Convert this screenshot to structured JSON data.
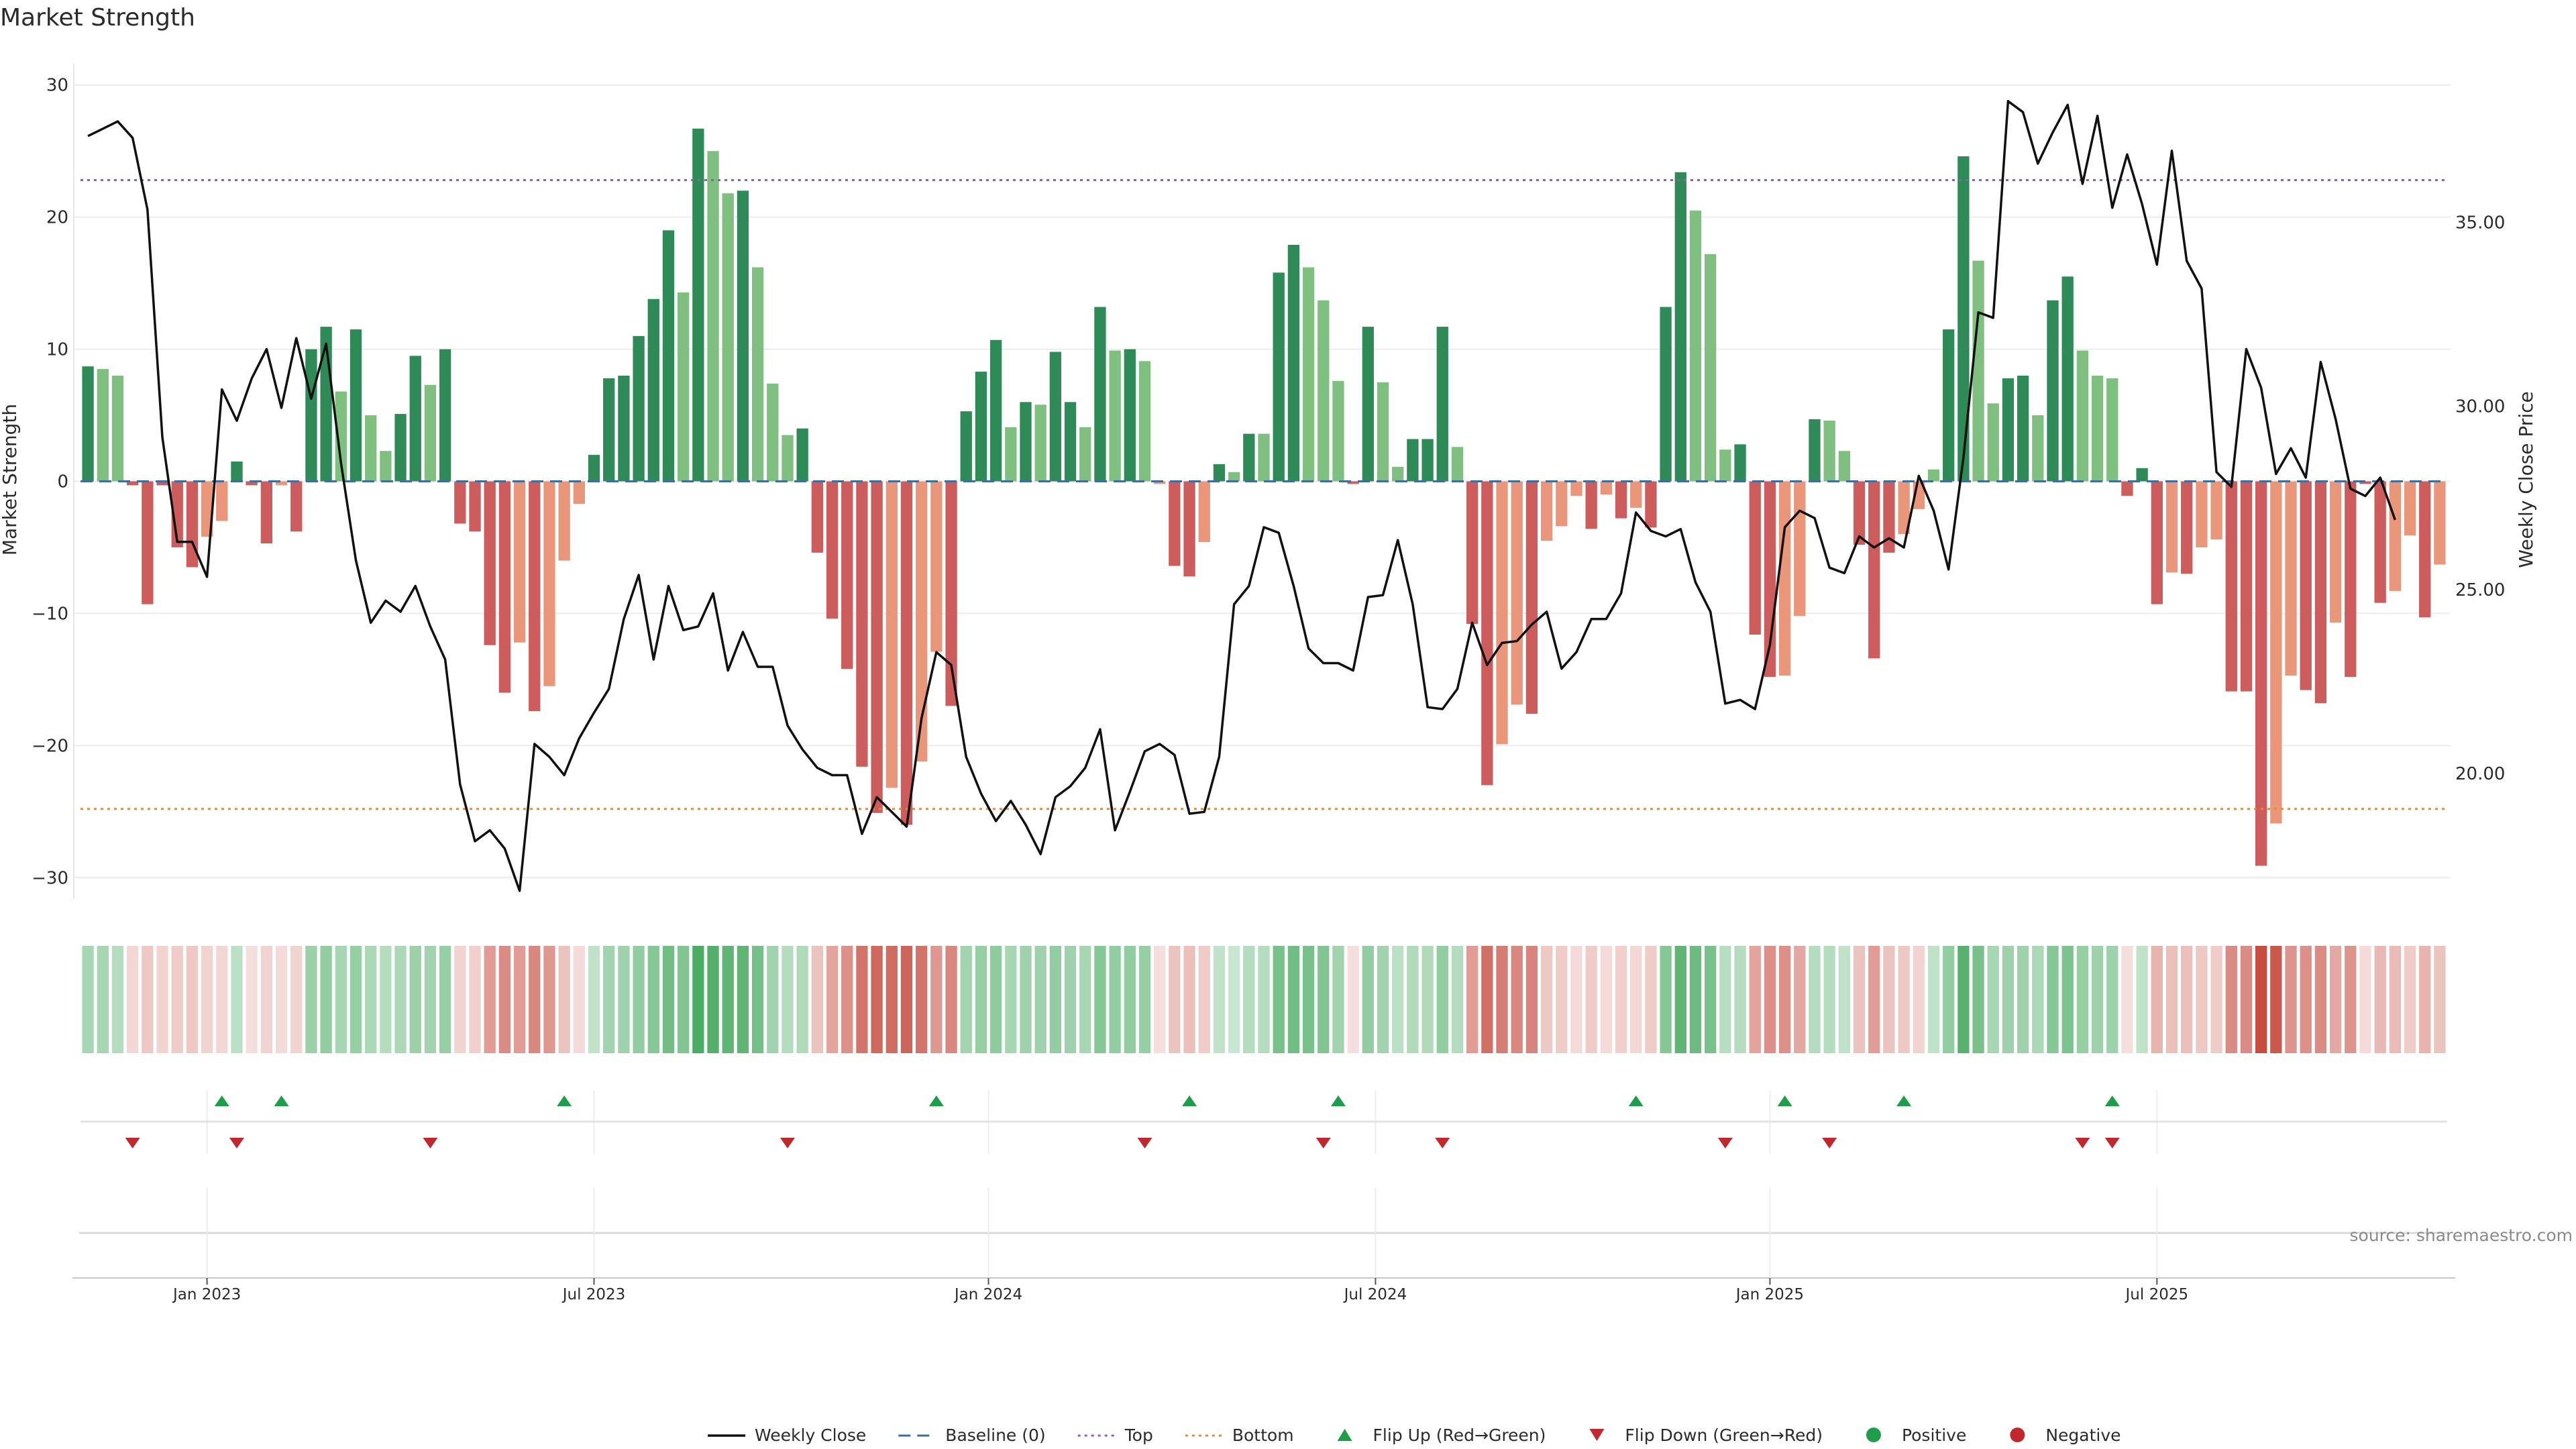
{
  "chart_data": {
    "type": "bar",
    "title": "Market Strength",
    "ylabel_left": "Market Strength",
    "ylabel_right": "Weekly Close Price",
    "left_axis": {
      "ylim": [
        -31,
        31
      ],
      "ticks": [
        30,
        20,
        10,
        0,
        -10,
        -20,
        -30
      ],
      "tick_labels": [
        "30",
        "20",
        "10",
        "0",
        "−10",
        "−20",
        "−30"
      ]
    },
    "right_axis": {
      "ylim": [
        16.8,
        39.1
      ],
      "ticks": [
        35,
        30,
        25,
        20
      ],
      "tick_labels": [
        "35.00",
        "30.00",
        "25.00",
        "20.00"
      ]
    },
    "x_ticks": [
      {
        "week": 8.5,
        "label": "Jan 2023"
      },
      {
        "week": 34.5,
        "label": "Jul 2023"
      },
      {
        "week": 61,
        "label": "Jan 2024"
      },
      {
        "week": 87,
        "label": "Jul 2024"
      },
      {
        "week": 113.5,
        "label": "Jan 2025"
      },
      {
        "week": 139.5,
        "label": "Jul 2025"
      }
    ],
    "reference_lines": {
      "baseline": 0,
      "top": 22.8,
      "bottom": -24.8
    },
    "colors": {
      "strong_positive": "#2e8b57",
      "weak_positive": "#7fbf7f",
      "strong_negative": "#cd5c5c",
      "weak_negative": "#e9967a",
      "close_line": "#111111",
      "baseline": "#3a6ea5",
      "top_line": "#9b59b6",
      "bottom_line": "#e08a3c",
      "flip_up": "#1e9e4a",
      "flip_down": "#c0282d",
      "heat_positive": "#2e9e4a",
      "heat_negative": "#c0392b"
    },
    "strength": [
      8.7,
      8.5,
      8,
      -0.3,
      -9.3,
      -0.3,
      -5,
      -6.5,
      -4.2,
      -3,
      1.5,
      -0.3,
      -4.7,
      -0.3,
      -3.8,
      10,
      11.7,
      6.8,
      11.5,
      5,
      2.3,
      5.1,
      9.5,
      7.3,
      10,
      -3.2,
      -3.8,
      -12.4,
      -16,
      -12.2,
      -17.4,
      -15.5,
      -6,
      -1.7,
      2,
      7.8,
      8,
      11,
      13.8,
      19,
      14.3,
      26.7,
      25,
      21.8,
      22,
      16.2,
      7.4,
      3.5,
      4,
      -5.4,
      -10.4,
      -14.2,
      -21.6,
      -25.1,
      -23.2,
      -26,
      -21.2,
      -12.9,
      -17,
      5.3,
      8.3,
      10.7,
      4.1,
      6,
      5.8,
      9.8,
      6,
      4.1,
      13.2,
      9.9,
      10,
      9.1,
      -0.2,
      -6.4,
      -7.2,
      -4.6,
      1.3,
      0.7,
      3.6,
      3.6,
      15.8,
      17.9,
      16.2,
      13.7,
      7.6,
      -0.2,
      11.7,
      7.5,
      1.1,
      3.2,
      3.2,
      11.7,
      2.6,
      -10.8,
      -23,
      -19.9,
      -16.9,
      -17.6,
      -4.5,
      -3.4,
      -1.1,
      -3.6,
      -1,
      -2.8,
      -2,
      -3.5,
      13.2,
      23.4,
      20.5,
      17.2,
      2.4,
      2.8,
      -11.6,
      -14.8,
      -14.7,
      -10.2,
      4.7,
      4.6,
      2.3,
      -4.8,
      -13.4,
      -5.4,
      -4,
      -2.1,
      0.9,
      11.5,
      24.6,
      16.7,
      5.9,
      7.8,
      8,
      5,
      13.7,
      15.5,
      9.9,
      8,
      7.8,
      -1.1,
      1,
      -9.3,
      -6.9,
      -7,
      -5,
      -4.4,
      -15.9,
      -15.9,
      -29.1,
      -25.9,
      -14.7,
      -15.8,
      -16.8,
      -10.7,
      -14.8,
      -0.2,
      -9.2,
      -8.3,
      -4.1,
      -10.3,
      -6.3
    ],
    "strength_shading": [
      "strong",
      "weak",
      "weak",
      "strong",
      "strong",
      "strong",
      "strong",
      "strong",
      "weak",
      "weak",
      "strong",
      "strong",
      "strong",
      "weak",
      "strong",
      "strong",
      "strong",
      "weak",
      "strong",
      "weak",
      "weak",
      "strong",
      "strong",
      "weak",
      "strong",
      "strong",
      "strong",
      "strong",
      "strong",
      "weak",
      "strong",
      "weak",
      "weak",
      "weak",
      "strong",
      "strong",
      "strong",
      "strong",
      "strong",
      "strong",
      "weak",
      "strong",
      "weak",
      "weak",
      "strong",
      "weak",
      "weak",
      "weak",
      "strong",
      "strong",
      "strong",
      "strong",
      "strong",
      "strong",
      "weak",
      "strong",
      "weak",
      "weak",
      "strong",
      "strong",
      "strong",
      "strong",
      "weak",
      "strong",
      "weak",
      "strong",
      "strong",
      "weak",
      "strong",
      "weak",
      "strong",
      "weak",
      "weak",
      "strong",
      "strong",
      "weak",
      "strong",
      "weak",
      "strong",
      "weak",
      "strong",
      "strong",
      "weak",
      "weak",
      "weak",
      "strong",
      "strong",
      "weak",
      "weak",
      "strong",
      "strong",
      "strong",
      "weak",
      "strong",
      "strong",
      "weak",
      "weak",
      "strong",
      "weak",
      "weak",
      "weak",
      "strong",
      "weak",
      "strong",
      "weak",
      "strong",
      "strong",
      "strong",
      "weak",
      "weak",
      "weak",
      "strong",
      "strong",
      "strong",
      "weak",
      "weak",
      "strong",
      "weak",
      "weak",
      "strong",
      "strong",
      "strong",
      "weak",
      "weak",
      "weak",
      "strong",
      "strong",
      "weak",
      "weak",
      "strong",
      "strong",
      "weak",
      "strong",
      "strong",
      "weak",
      "weak",
      "weak",
      "strong",
      "strong",
      "strong",
      "weak",
      "strong",
      "weak",
      "weak",
      "strong",
      "strong",
      "strong",
      "weak",
      "weak",
      "strong",
      "strong",
      "weak",
      "strong",
      "strong",
      "strong",
      "weak",
      "weak",
      "strong",
      "weak"
    ],
    "weekly_close": [
      37.35,
      37.55,
      37.75,
      37.3,
      35.35,
      29.15,
      26.3,
      26.3,
      25.35,
      30.45,
      29.6,
      30.75,
      31.55,
      29.95,
      31.85,
      30.2,
      31.7,
      28.45,
      25.8,
      24.1,
      24.7,
      24.4,
      25.1,
      24,
      23.1,
      19.7,
      18.15,
      18.45,
      17.95,
      16.8,
      20.8,
      20.45,
      19.95,
      20.95,
      21.65,
      22.3,
      24.2,
      25.4,
      23.1,
      25.1,
      23.9,
      24,
      24.9,
      22.8,
      23.85,
      22.9,
      22.9,
      21.3,
      20.65,
      20.15,
      19.95,
      19.95,
      18.35,
      19.35,
      18.95,
      18.55,
      21.5,
      23.3,
      22.95,
      20.45,
      19.45,
      18.7,
      19.25,
      18.6,
      17.8,
      19.35,
      19.65,
      20.15,
      21.2,
      18.45,
      19.5,
      20.6,
      20.8,
      20.5,
      18.9,
      18.95,
      20.45,
      24.6,
      25.1,
      26.7,
      26.55,
      25.1,
      23.4,
      23,
      23,
      22.8,
      24.8,
      24.85,
      26.35,
      24.6,
      21.8,
      21.75,
      22.3,
      24.1,
      22.95,
      23.55,
      23.6,
      24.05,
      24.4,
      22.85,
      23.3,
      24.2,
      24.2,
      24.9,
      27.1,
      26.6,
      26.45,
      26.65,
      25.2,
      24.4,
      21.9,
      22,
      21.75,
      23.5,
      26.7,
      27.15,
      26.95,
      25.6,
      25.45,
      26.45,
      26.15,
      26.4,
      26.15,
      28.1,
      27.15,
      25.55,
      28.6,
      32.55,
      32.4,
      38.3,
      38,
      36.6,
      37.45,
      38.2,
      36.05,
      37.9,
      35.4,
      36.85,
      35.5,
      33.85,
      36.95,
      33.95,
      33.2,
      28.2,
      27.8,
      31.55,
      30.5,
      28.15,
      28.85,
      28.05,
      31.2,
      29.65,
      27.75,
      27.55,
      28.05,
      26.9
    ],
    "heat_strength": [
      0.42,
      0.42,
      0.36,
      0.2,
      0.28,
      0.22,
      0.26,
      0.28,
      0.22,
      0.2,
      0.32,
      0.16,
      0.22,
      0.18,
      0.22,
      0.48,
      0.52,
      0.42,
      0.5,
      0.4,
      0.36,
      0.4,
      0.48,
      0.44,
      0.5,
      0.22,
      0.24,
      0.5,
      0.58,
      0.5,
      0.6,
      0.52,
      0.3,
      0.18,
      0.3,
      0.45,
      0.46,
      0.52,
      0.58,
      0.68,
      0.6,
      0.86,
      0.82,
      0.76,
      0.76,
      0.66,
      0.45,
      0.36,
      0.38,
      0.3,
      0.46,
      0.56,
      0.7,
      0.76,
      0.74,
      0.78,
      0.7,
      0.52,
      0.6,
      0.44,
      0.5,
      0.54,
      0.42,
      0.46,
      0.46,
      0.52,
      0.46,
      0.42,
      0.58,
      0.52,
      0.52,
      0.5,
      0.16,
      0.3,
      0.32,
      0.26,
      0.3,
      0.26,
      0.36,
      0.36,
      0.64,
      0.68,
      0.64,
      0.6,
      0.45,
      0.16,
      0.52,
      0.45,
      0.32,
      0.38,
      0.38,
      0.52,
      0.36,
      0.5,
      0.72,
      0.66,
      0.6,
      0.62,
      0.28,
      0.26,
      0.18,
      0.26,
      0.18,
      0.24,
      0.2,
      0.26,
      0.58,
      0.76,
      0.7,
      0.64,
      0.34,
      0.36,
      0.46,
      0.56,
      0.56,
      0.44,
      0.36,
      0.36,
      0.3,
      0.3,
      0.5,
      0.3,
      0.28,
      0.22,
      0.3,
      0.52,
      0.8,
      0.64,
      0.42,
      0.46,
      0.46,
      0.4,
      0.58,
      0.62,
      0.5,
      0.46,
      0.46,
      0.16,
      0.3,
      0.38,
      0.32,
      0.32,
      0.28,
      0.26,
      0.58,
      0.58,
      0.9,
      0.84,
      0.54,
      0.56,
      0.58,
      0.44,
      0.54,
      0.18,
      0.36,
      0.34,
      0.26,
      0.38,
      0.3
    ],
    "flip_up_weeks": [
      9,
      13,
      32,
      57,
      74,
      84,
      104,
      114,
      122,
      136
    ],
    "flip_down_weeks": [
      3,
      10,
      23,
      47,
      71,
      83,
      91,
      110,
      117,
      134,
      136
    ]
  },
  "legend": [
    {
      "key": "weekly_close",
      "label": "Weekly Close"
    },
    {
      "key": "baseline",
      "label": "Baseline (0)"
    },
    {
      "key": "top",
      "label": "Top"
    },
    {
      "key": "bottom",
      "label": "Bottom"
    },
    {
      "key": "flip_up",
      "label": "Flip Up (Red→Green)"
    },
    {
      "key": "flip_down",
      "label": "Flip Down (Green→Red)"
    },
    {
      "key": "positive",
      "label": "Positive"
    },
    {
      "key": "negative",
      "label": "Negative"
    }
  ],
  "source": "source: sharemaestro.com"
}
